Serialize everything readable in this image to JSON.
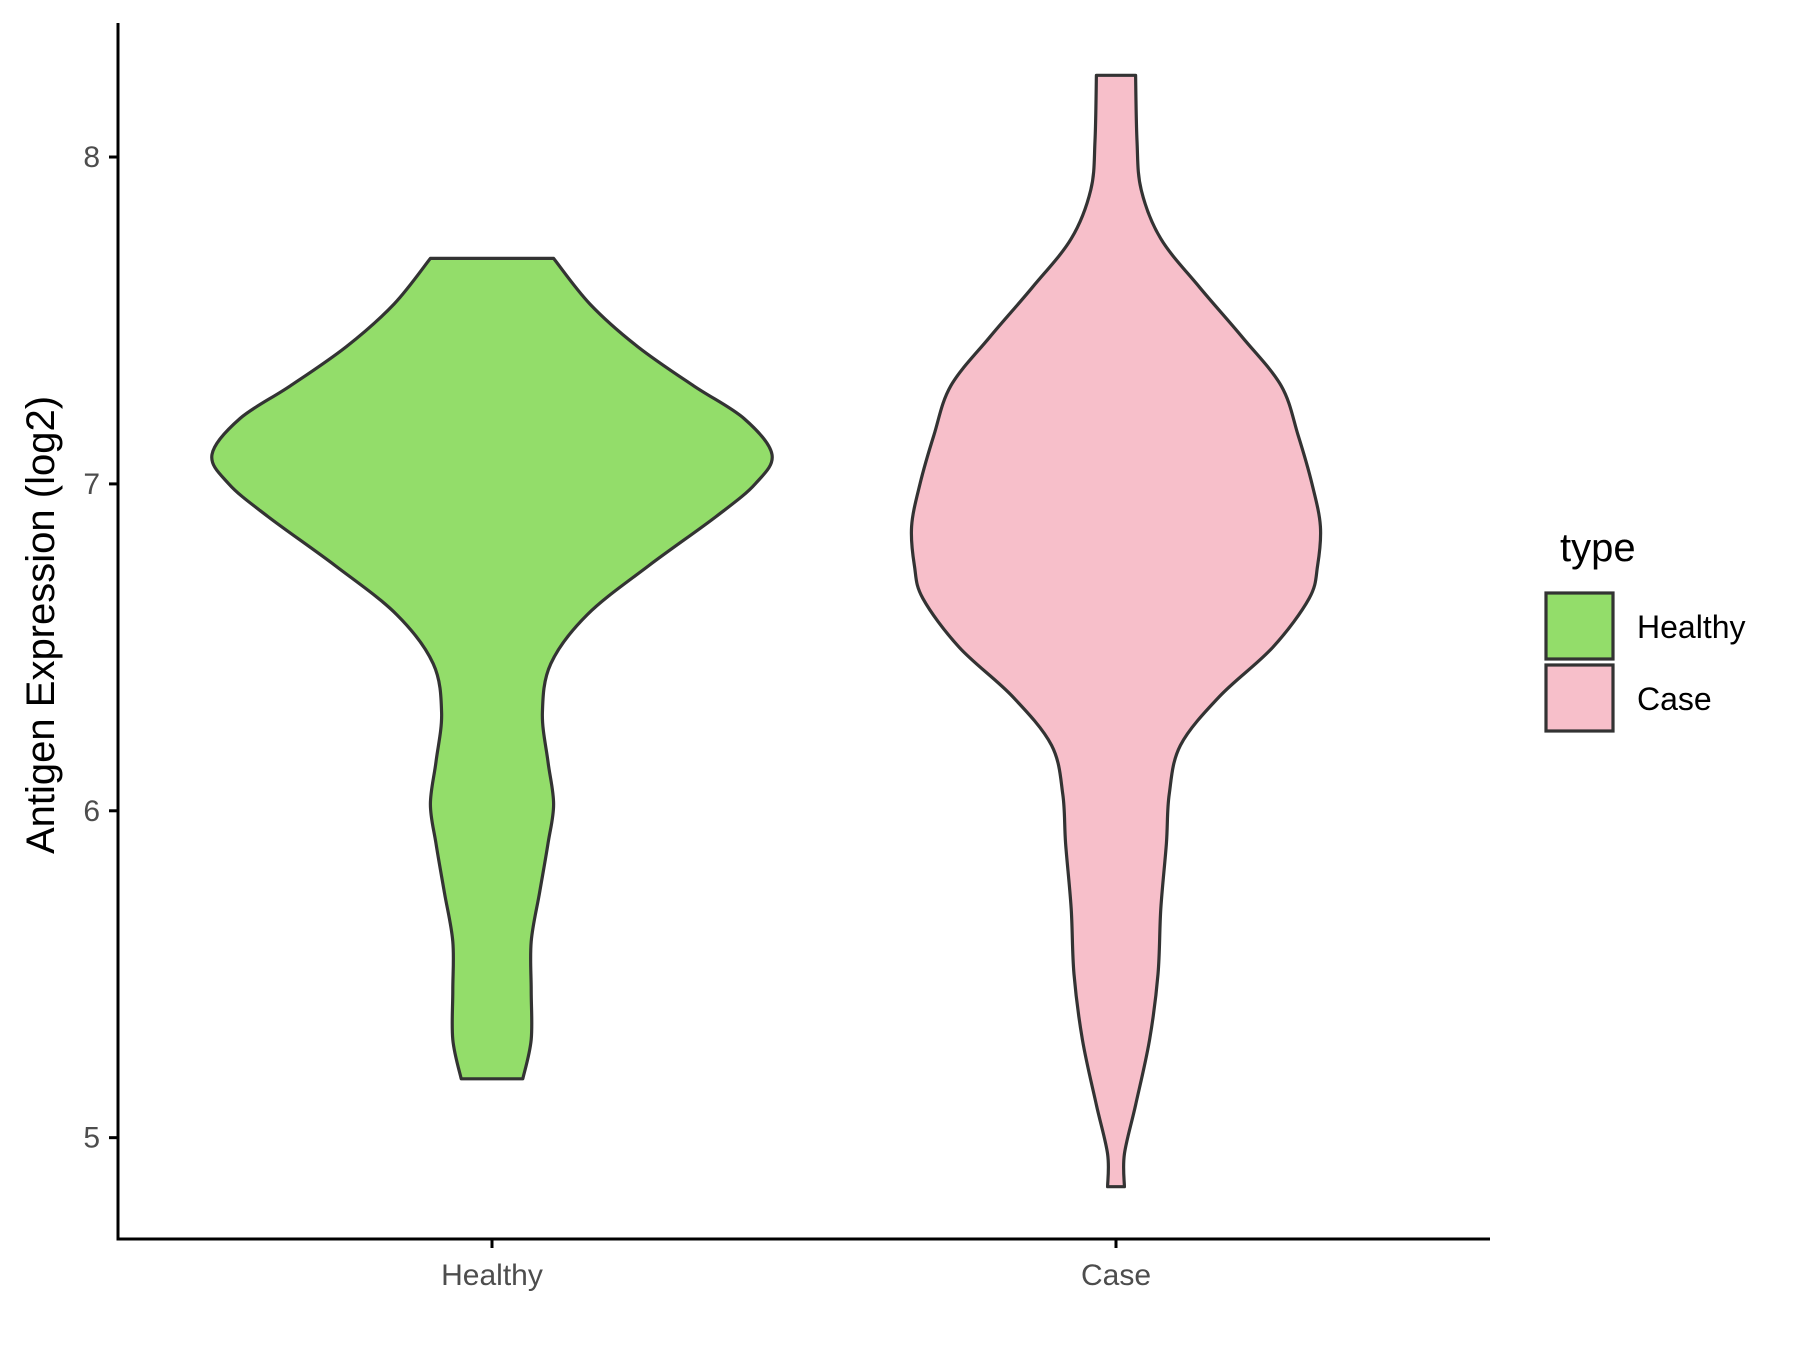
{
  "chart_data": {
    "type": "violin",
    "title": "",
    "xlabel": "",
    "ylabel": "Antigen Expression (log2)",
    "ylim": [
      4.69,
      8.41
    ],
    "yticks": [
      5,
      6,
      7,
      8
    ],
    "ytick_labels": [
      "5",
      "6",
      "7",
      "8"
    ],
    "categories": [
      "Healthy",
      "Case"
    ],
    "grid": false,
    "legend": {
      "title": "type",
      "placement": "right",
      "entries": [
        {
          "label": "Healthy",
          "color": "#93DD6A"
        },
        {
          "label": "Case",
          "color": "#F7BFCA"
        }
      ]
    },
    "series": [
      {
        "name": "Healthy",
        "color": "#93DD6A",
        "y_min": 5.18,
        "y_max": 7.69,
        "density_profile": [
          {
            "y": 5.18,
            "w": 0.11
          },
          {
            "y": 5.3,
            "w": 0.14
          },
          {
            "y": 5.45,
            "w": 0.14
          },
          {
            "y": 5.6,
            "w": 0.14
          },
          {
            "y": 5.75,
            "w": 0.17
          },
          {
            "y": 5.9,
            "w": 0.2
          },
          {
            "y": 6.02,
            "w": 0.22
          },
          {
            "y": 6.15,
            "w": 0.2
          },
          {
            "y": 6.3,
            "w": 0.18
          },
          {
            "y": 6.45,
            "w": 0.21
          },
          {
            "y": 6.6,
            "w": 0.34
          },
          {
            "y": 6.75,
            "w": 0.56
          },
          {
            "y": 6.9,
            "w": 0.8
          },
          {
            "y": 7.0,
            "w": 0.94
          },
          {
            "y": 7.09,
            "w": 1.0
          },
          {
            "y": 7.2,
            "w": 0.9
          },
          {
            "y": 7.3,
            "w": 0.72
          },
          {
            "y": 7.42,
            "w": 0.52
          },
          {
            "y": 7.55,
            "w": 0.35
          },
          {
            "y": 7.69,
            "w": 0.22
          }
        ]
      },
      {
        "name": "Case",
        "color": "#F7BFCA",
        "y_min": 4.85,
        "y_max": 8.25,
        "density_profile": [
          {
            "y": 4.85,
            "w": 0.03
          },
          {
            "y": 4.95,
            "w": 0.03
          },
          {
            "y": 5.1,
            "w": 0.07
          },
          {
            "y": 5.3,
            "w": 0.12
          },
          {
            "y": 5.5,
            "w": 0.15
          },
          {
            "y": 5.7,
            "w": 0.16
          },
          {
            "y": 5.9,
            "w": 0.18
          },
          {
            "y": 6.05,
            "w": 0.19
          },
          {
            "y": 6.2,
            "w": 0.23
          },
          {
            "y": 6.35,
            "w": 0.37
          },
          {
            "y": 6.5,
            "w": 0.56
          },
          {
            "y": 6.65,
            "w": 0.69
          },
          {
            "y": 6.75,
            "w": 0.72
          },
          {
            "y": 6.87,
            "w": 0.73
          },
          {
            "y": 7.0,
            "w": 0.7
          },
          {
            "y": 7.15,
            "w": 0.65
          },
          {
            "y": 7.3,
            "w": 0.59
          },
          {
            "y": 7.45,
            "w": 0.45
          },
          {
            "y": 7.6,
            "w": 0.3
          },
          {
            "y": 7.75,
            "w": 0.16
          },
          {
            "y": 7.9,
            "w": 0.09
          },
          {
            "y": 8.05,
            "w": 0.075
          },
          {
            "y": 8.25,
            "w": 0.07
          }
        ]
      }
    ]
  }
}
